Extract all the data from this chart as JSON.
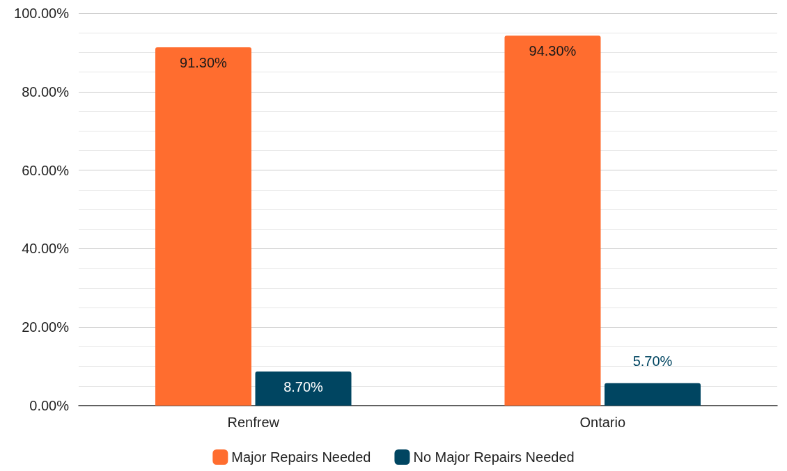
{
  "chart_data": {
    "type": "bar",
    "categories": [
      "Renfrew",
      "Ontario"
    ],
    "series": [
      {
        "name": "Major Repairs Needed",
        "color": "#ff6d2f",
        "values": [
          91.3,
          94.3
        ],
        "value_labels": [
          "91.30%",
          "94.30%"
        ]
      },
      {
        "name": "No Major Repairs Needed",
        "color": "#004561",
        "values": [
          8.7,
          5.7
        ],
        "value_labels": [
          "8.70%",
          "5.70%"
        ]
      }
    ],
    "ylim": [
      0,
      100
    ],
    "yticks": [
      {
        "value": 0,
        "label": "0.00%"
      },
      {
        "value": 5,
        "label": null
      },
      {
        "value": 10,
        "label": null
      },
      {
        "value": 15,
        "label": null
      },
      {
        "value": 20,
        "label": "20.00%"
      },
      {
        "value": 25,
        "label": null
      },
      {
        "value": 30,
        "label": null
      },
      {
        "value": 35,
        "label": null
      },
      {
        "value": 40,
        "label": "40.00%"
      },
      {
        "value": 45,
        "label": null
      },
      {
        "value": 50,
        "label": null
      },
      {
        "value": 55,
        "label": null
      },
      {
        "value": 60,
        "label": "60.00%"
      },
      {
        "value": 65,
        "label": null
      },
      {
        "value": 70,
        "label": null
      },
      {
        "value": 75,
        "label": null
      },
      {
        "value": 80,
        "label": "80.00%"
      },
      {
        "value": 85,
        "label": null
      },
      {
        "value": 90,
        "label": null
      },
      {
        "value": 95,
        "label": null
      },
      {
        "value": 100,
        "label": "100.00%"
      }
    ],
    "grid": "y",
    "legend": "bottom"
  }
}
